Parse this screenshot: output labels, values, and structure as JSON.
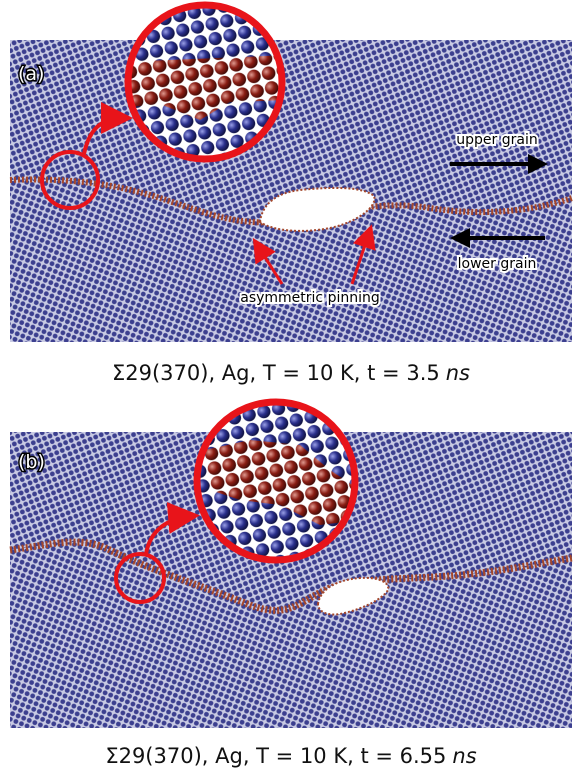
{
  "panels": [
    {
      "label": "(a)",
      "annotations": {
        "upper": "upper grain",
        "lower": "lower grain",
        "pinning": "asymmetric pinning"
      },
      "caption": {
        "text": "Σ29(370), Ag, T = 10 K, t = 3.5",
        "italic": "ns"
      }
    },
    {
      "label": "(b)",
      "caption": {
        "text": "Σ29(370), Ag, T = 10 K, t = 6.55",
        "italic": "ns"
      }
    }
  ]
}
